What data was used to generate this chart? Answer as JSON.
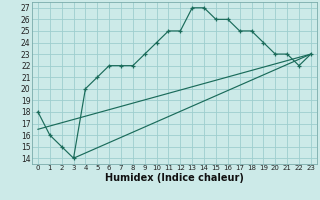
{
  "title": "",
  "xlabel": "Humidex (Indice chaleur)",
  "bg_color": "#cceae8",
  "grid_color": "#9ecece",
  "line_color": "#1a6b5a",
  "xlim": [
    -0.5,
    23.5
  ],
  "ylim": [
    13.5,
    27.5
  ],
  "xticks": [
    0,
    1,
    2,
    3,
    4,
    5,
    6,
    7,
    8,
    9,
    10,
    11,
    12,
    13,
    14,
    15,
    16,
    17,
    18,
    19,
    20,
    21,
    22,
    23
  ],
  "yticks": [
    14,
    15,
    16,
    17,
    18,
    19,
    20,
    21,
    22,
    23,
    24,
    25,
    26,
    27
  ],
  "main_x": [
    0,
    1,
    2,
    3,
    4,
    5,
    6,
    7,
    8,
    9,
    10,
    11,
    12,
    13,
    14,
    15,
    16,
    17,
    18,
    19,
    20,
    21,
    22,
    23
  ],
  "main_y": [
    18,
    16,
    15,
    14,
    20,
    21,
    22,
    22,
    22,
    23,
    24,
    25,
    25,
    27,
    27,
    26,
    26,
    25,
    25,
    24,
    23,
    23,
    22,
    23
  ],
  "line1_x": [
    0,
    23
  ],
  "line1_y": [
    16.5,
    23.0
  ],
  "line2_x": [
    3,
    23
  ],
  "line2_y": [
    14.0,
    23.0
  ]
}
